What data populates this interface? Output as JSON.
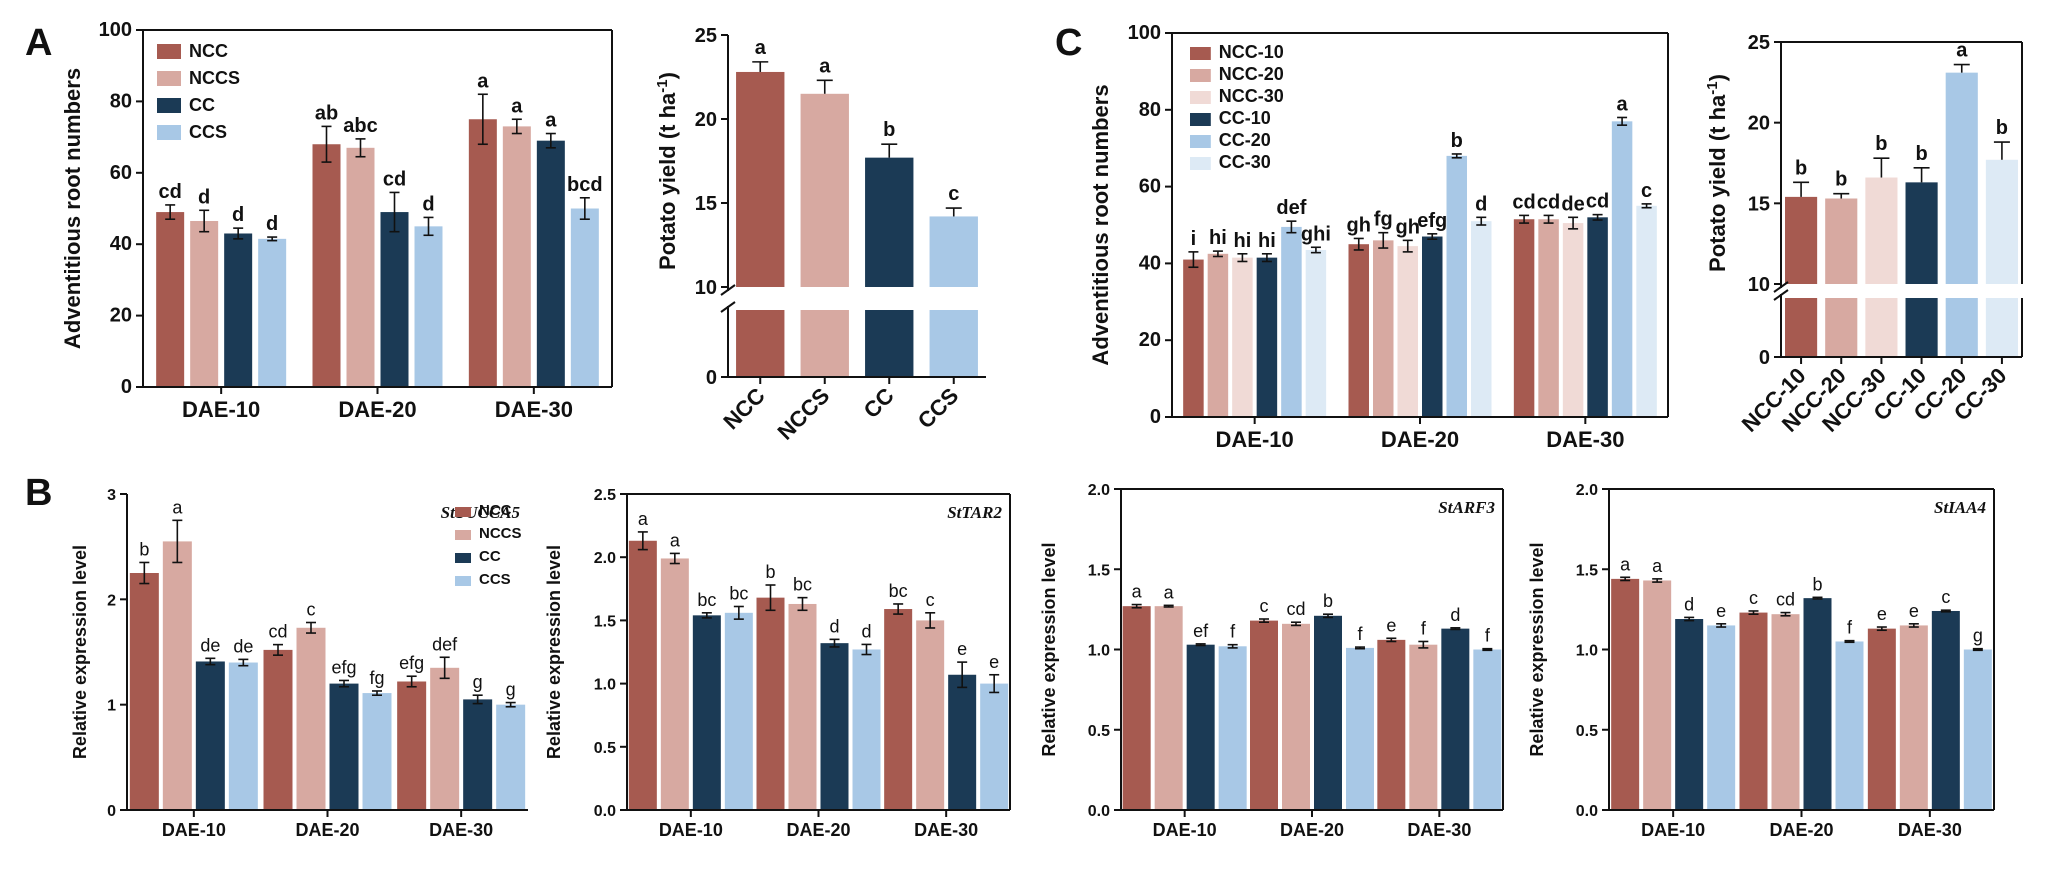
{
  "panel_letters": {
    "a": "A",
    "b": "B",
    "c": "C"
  },
  "chart_data": [
    {
      "id": "A1",
      "type": "bar",
      "panel": "A",
      "title": "",
      "xlabel": "",
      "ylabel": "Adventitious root numbers",
      "ylim": [
        0,
        100
      ],
      "yticks": [
        "0",
        "20",
        "40",
        "60",
        "80",
        "100"
      ],
      "categories": [
        "DAE-10",
        "DAE-20",
        "DAE-30"
      ],
      "series": [
        {
          "name": "NCC",
          "color": "#A65A50",
          "values": [
            49,
            68,
            75
          ],
          "errors": [
            2,
            5,
            7
          ],
          "letters": [
            "cd",
            "ab",
            "a"
          ]
        },
        {
          "name": "NCCS",
          "color": "#D7A9A1",
          "values": [
            46.5,
            67,
            73
          ],
          "errors": [
            3,
            2.5,
            2
          ],
          "letters": [
            "d",
            "abc",
            "a"
          ]
        },
        {
          "name": "CC",
          "color": "#1B3A55",
          "values": [
            43,
            49,
            69
          ],
          "errors": [
            1.5,
            5.5,
            2
          ],
          "letters": [
            "d",
            "cd",
            "a"
          ]
        },
        {
          "name": "CCS",
          "color": "#A8C8E6",
          "values": [
            41.5,
            45,
            50
          ],
          "errors": [
            0.5,
            2.5,
            3
          ],
          "letters": [
            "d",
            "d",
            "bcd"
          ]
        }
      ]
    },
    {
      "id": "A2",
      "type": "bar",
      "panel": "A",
      "title": "",
      "xlabel": "",
      "ylabel": "Potato yield (t ha-1)",
      "ylabel_main": "Potato yield (t ha",
      "ylabel_sup": "-1",
      "ylabel_end": ")",
      "axis_break": [
        0,
        10
      ],
      "yticks": [
        "0",
        "10",
        "15",
        "20",
        "25"
      ],
      "categories": [
        "NCC",
        "NCCS",
        "CC",
        "CCS"
      ],
      "colors": [
        "#A65A50",
        "#D7A9A1",
        "#1B3A55",
        "#A8C8E6"
      ],
      "values": [
        22.8,
        21.5,
        17.7,
        14.2
      ],
      "errors": [
        0.6,
        0.8,
        0.8,
        0.5
      ],
      "letters": [
        "a",
        "a",
        "b",
        "c"
      ]
    },
    {
      "id": "C1",
      "type": "bar",
      "panel": "C",
      "title": "",
      "xlabel": "",
      "ylabel": "Adventitious root numbers",
      "ylim": [
        0,
        100
      ],
      "yticks": [
        "0",
        "20",
        "40",
        "60",
        "80",
        "100"
      ],
      "categories": [
        "DAE-10",
        "DAE-20",
        "DAE-30"
      ],
      "series": [
        {
          "name": "NCC-10",
          "color": "#A65A50",
          "values": [
            41,
            45,
            51.5
          ],
          "errors": [
            2,
            1.5,
            1
          ],
          "letters": [
            "i",
            "gh",
            "cd"
          ]
        },
        {
          "name": "NCC-20",
          "color": "#D7A9A1",
          "values": [
            42.5,
            46,
            51.5
          ],
          "errors": [
            0.7,
            2,
            1
          ],
          "letters": [
            "hi",
            "fg",
            "cd"
          ]
        },
        {
          "name": "NCC-30",
          "color": "#F0DAD6",
          "values": [
            41.5,
            44.5,
            50.5
          ],
          "errors": [
            1,
            1.5,
            1.5
          ],
          "letters": [
            "hi",
            "gh",
            "de"
          ]
        },
        {
          "name": "CC-10",
          "color": "#1B3A55",
          "values": [
            41.5,
            47,
            52
          ],
          "errors": [
            1,
            0.7,
            0.7
          ],
          "letters": [
            "hi",
            "efg",
            "cd"
          ]
        },
        {
          "name": "CC-20",
          "color": "#A8C8E6",
          "values": [
            49.5,
            68,
            77
          ],
          "errors": [
            1.5,
            0.5,
            1
          ],
          "letters": [
            "def",
            "b",
            "a"
          ]
        },
        {
          "name": "CC-30",
          "color": "#DDEAF5",
          "values": [
            43.5,
            51,
            55
          ],
          "errors": [
            0.7,
            1,
            0.5
          ],
          "letters": [
            "ghi",
            "d",
            "c"
          ]
        }
      ]
    },
    {
      "id": "C2",
      "type": "bar",
      "panel": "C",
      "title": "",
      "xlabel": "",
      "ylabel": "Potato yield (t ha-1)",
      "ylabel_main": "Potato yield (t ha",
      "ylabel_sup": "-1",
      "ylabel_end": ")",
      "axis_break": [
        0,
        10
      ],
      "yticks": [
        "0",
        "10",
        "15",
        "20",
        "25"
      ],
      "categories": [
        "NCC-10",
        "NCC-20",
        "NCC-30",
        "CC-10",
        "CC-20",
        "CC-30"
      ],
      "colors": [
        "#A65A50",
        "#D7A9A1",
        "#F0DAD6",
        "#1B3A55",
        "#A8C8E6",
        "#DDEAF5"
      ],
      "values": [
        15.4,
        15.3,
        16.6,
        16.3,
        23.1,
        17.7
      ],
      "errors": [
        0.9,
        0.3,
        1.2,
        0.9,
        0.5,
        1.1
      ],
      "letters": [
        "b",
        "b",
        "b",
        "b",
        "a",
        "b"
      ]
    },
    {
      "id": "B1",
      "type": "bar",
      "panel": "B",
      "gene": "StYUCCA5",
      "title": "StYUCCA5",
      "xlabel": "",
      "ylabel": "Relative expression level",
      "ylim": [
        0,
        3
      ],
      "yticks": [
        "0",
        "1",
        "2",
        "3"
      ],
      "categories": [
        "DAE-10",
        "DAE-20",
        "DAE-30"
      ],
      "series": [
        {
          "name": "NCC",
          "color": "#A65A50",
          "values": [
            2.25,
            1.52,
            1.22
          ],
          "errors": [
            0.1,
            0.05,
            0.05
          ],
          "letters": [
            "b",
            "cd",
            "efg"
          ]
        },
        {
          "name": "NCCS",
          "color": "#D7A9A1",
          "values": [
            2.55,
            1.73,
            1.35
          ],
          "errors": [
            0.2,
            0.05,
            0.1
          ],
          "letters": [
            "a",
            "c",
            "def"
          ]
        },
        {
          "name": "CC",
          "color": "#1B3A55",
          "values": [
            1.41,
            1.2,
            1.05
          ],
          "errors": [
            0.03,
            0.03,
            0.04
          ],
          "letters": [
            "de",
            "efg",
            "g"
          ]
        },
        {
          "name": "CCS",
          "color": "#A8C8E6",
          "values": [
            1.4,
            1.11,
            1.0
          ],
          "errors": [
            0.03,
            0.02,
            0.02
          ],
          "letters": [
            "de",
            "fg",
            "g"
          ]
        }
      ]
    },
    {
      "id": "B2",
      "type": "bar",
      "panel": "B",
      "gene": "StTAR2",
      "title": "StTAR2",
      "xlabel": "",
      "ylabel": "Relative expression level",
      "ylim": [
        0,
        2.5
      ],
      "yticks": [
        "0.0",
        "0.5",
        "1.0",
        "1.5",
        "2.0",
        "2.5"
      ],
      "categories": [
        "DAE-10",
        "DAE-20",
        "DAE-30"
      ],
      "series": [
        {
          "name": "NCC",
          "color": "#A65A50",
          "values": [
            2.13,
            1.68,
            1.59
          ],
          "errors": [
            0.07,
            0.1,
            0.04
          ],
          "letters": [
            "a",
            "b",
            "bc"
          ]
        },
        {
          "name": "NCCS",
          "color": "#D7A9A1",
          "values": [
            1.99,
            1.63,
            1.5
          ],
          "errors": [
            0.04,
            0.05,
            0.06
          ],
          "letters": [
            "a",
            "bc",
            "c"
          ]
        },
        {
          "name": "CC",
          "color": "#1B3A55",
          "values": [
            1.54,
            1.32,
            1.07
          ],
          "errors": [
            0.02,
            0.03,
            0.1
          ],
          "letters": [
            "bc",
            "d",
            "e"
          ]
        },
        {
          "name": "CCS",
          "color": "#A8C8E6",
          "values": [
            1.56,
            1.27,
            1.0
          ],
          "errors": [
            0.05,
            0.04,
            0.07
          ],
          "letters": [
            "bc",
            "d",
            "e"
          ]
        }
      ]
    },
    {
      "id": "B3",
      "type": "bar",
      "panel": "B",
      "gene": "StARF3",
      "title": "StARF3",
      "xlabel": "",
      "ylabel": "Relative expression level",
      "ylim": [
        0,
        2.0
      ],
      "yticks": [
        "0.0",
        "0.5",
        "1.0",
        "1.5",
        "2.0"
      ],
      "categories": [
        "DAE-10",
        "DAE-20",
        "DAE-30"
      ],
      "series": [
        {
          "name": "NCC",
          "color": "#A65A50",
          "values": [
            1.27,
            1.18,
            1.06
          ],
          "errors": [
            0.01,
            0.01,
            0.01
          ],
          "letters": [
            "a",
            "c",
            "e"
          ]
        },
        {
          "name": "NCCS",
          "color": "#D7A9A1",
          "values": [
            1.27,
            1.16,
            1.03
          ],
          "errors": [
            0.005,
            0.01,
            0.02
          ],
          "letters": [
            "a",
            "cd",
            "f"
          ]
        },
        {
          "name": "CC",
          "color": "#1B3A55",
          "values": [
            1.03,
            1.21,
            1.13
          ],
          "errors": [
            0.005,
            0.01,
            0.005
          ],
          "letters": [
            "ef",
            "b",
            "d"
          ]
        },
        {
          "name": "CCS",
          "color": "#A8C8E6",
          "values": [
            1.02,
            1.01,
            1.0
          ],
          "errors": [
            0.01,
            0.005,
            0.005
          ],
          "letters": [
            "f",
            "f",
            "f"
          ]
        }
      ]
    },
    {
      "id": "B4",
      "type": "bar",
      "panel": "B",
      "gene": "StIAA4",
      "title": "StIAA4",
      "xlabel": "",
      "ylabel": "Relative expression level",
      "ylim": [
        0,
        2.0
      ],
      "yticks": [
        "0.0",
        "0.5",
        "1.0",
        "1.5",
        "2.0"
      ],
      "categories": [
        "DAE-10",
        "DAE-20",
        "DAE-30"
      ],
      "series": [
        {
          "name": "NCC",
          "color": "#A65A50",
          "values": [
            1.44,
            1.23,
            1.13
          ],
          "errors": [
            0.01,
            0.01,
            0.01
          ],
          "letters": [
            "a",
            "c",
            "e"
          ]
        },
        {
          "name": "NCCS",
          "color": "#D7A9A1",
          "values": [
            1.43,
            1.22,
            1.15
          ],
          "errors": [
            0.01,
            0.01,
            0.01
          ],
          "letters": [
            "a",
            "cd",
            "e"
          ]
        },
        {
          "name": "CC",
          "color": "#1B3A55",
          "values": [
            1.19,
            1.32,
            1.24
          ],
          "errors": [
            0.01,
            0.005,
            0.005
          ],
          "letters": [
            "d",
            "b",
            "c"
          ]
        },
        {
          "name": "CCS",
          "color": "#A8C8E6",
          "values": [
            1.15,
            1.05,
            1.0
          ],
          "errors": [
            0.01,
            0.005,
            0.005
          ],
          "letters": [
            "e",
            "f",
            "g"
          ]
        }
      ]
    }
  ]
}
